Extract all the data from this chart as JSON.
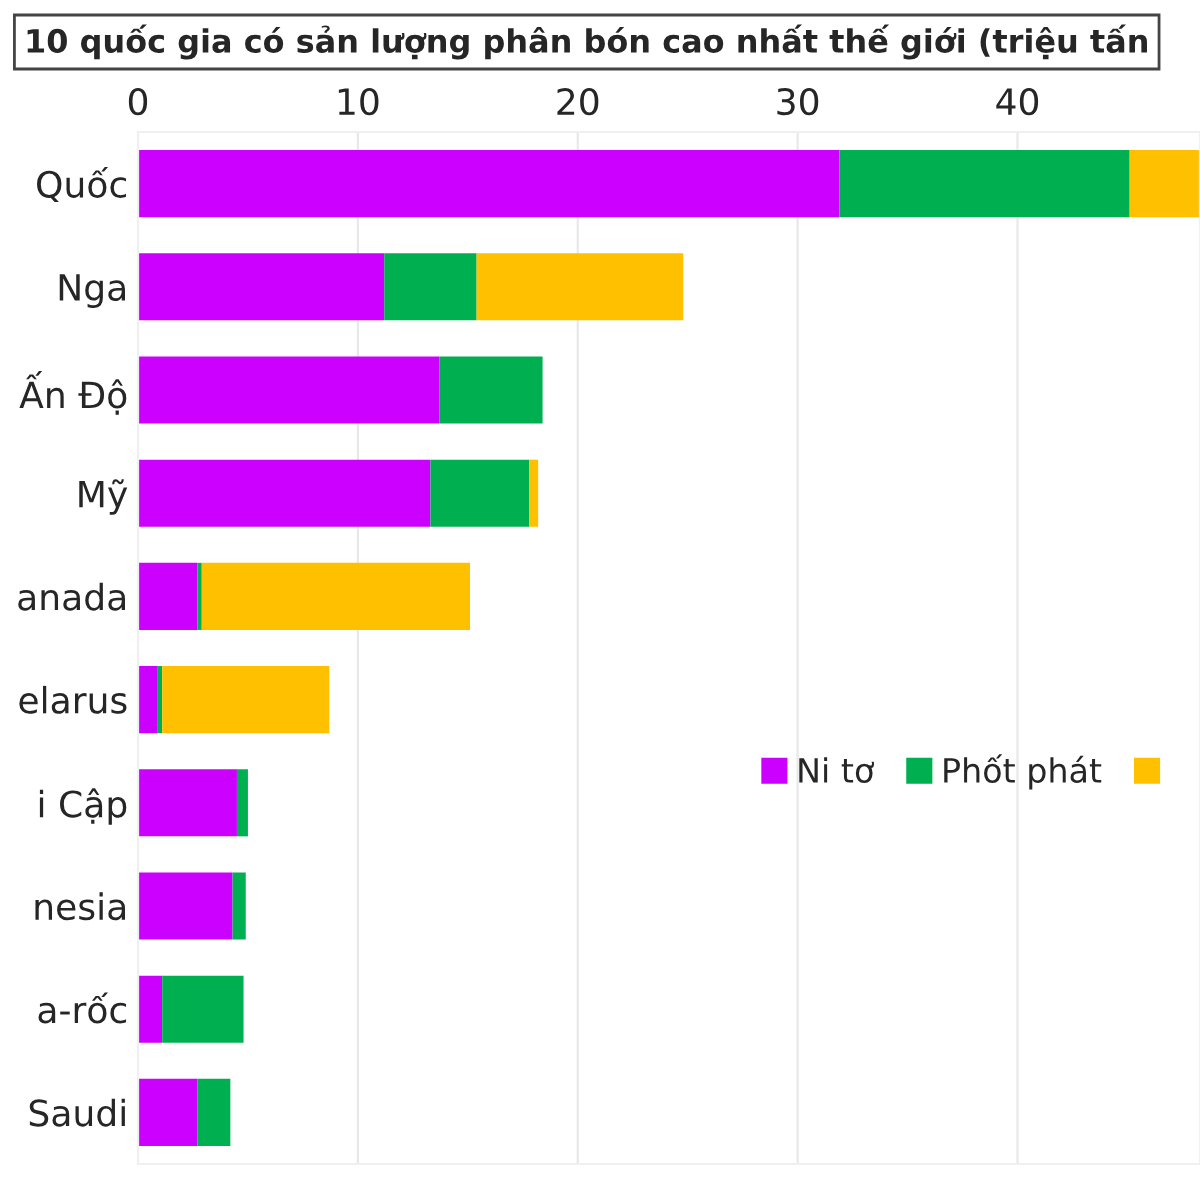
{
  "chart_data": {
    "type": "bar",
    "orientation": "horizontal",
    "stacked": true,
    "title": "10 quốc gia có sản lượng phân bón cao nhất thế giới (triệu tấn",
    "categories": [
      "Quốc",
      "Nga",
      "Ấn Độ",
      "Mỹ",
      "anada",
      "elarus",
      "i Cập",
      "nesia",
      "a-rốc",
      "Saudi"
    ],
    "series": [
      {
        "name": "Ni tơ",
        "color": "#cc00ff",
        "values": [
          31.9,
          11.2,
          13.7,
          13.3,
          2.7,
          0.9,
          4.5,
          4.3,
          1.1,
          2.7
        ]
      },
      {
        "name": "Phốt phát",
        "color": "#00b050",
        "values": [
          13.2,
          4.2,
          4.7,
          4.5,
          0.2,
          0.2,
          0.5,
          0.6,
          3.7,
          1.5
        ]
      },
      {
        "color": "#ffc000",
        "values": [
          3.2,
          9.4,
          null,
          0.4,
          12.2,
          7.6,
          null,
          null,
          null,
          null
        ]
      }
    ],
    "xlim": [
      0,
      48.3
    ],
    "xticks": [
      0,
      10,
      20,
      30,
      40
    ],
    "grid": "x",
    "legend": "right"
  }
}
